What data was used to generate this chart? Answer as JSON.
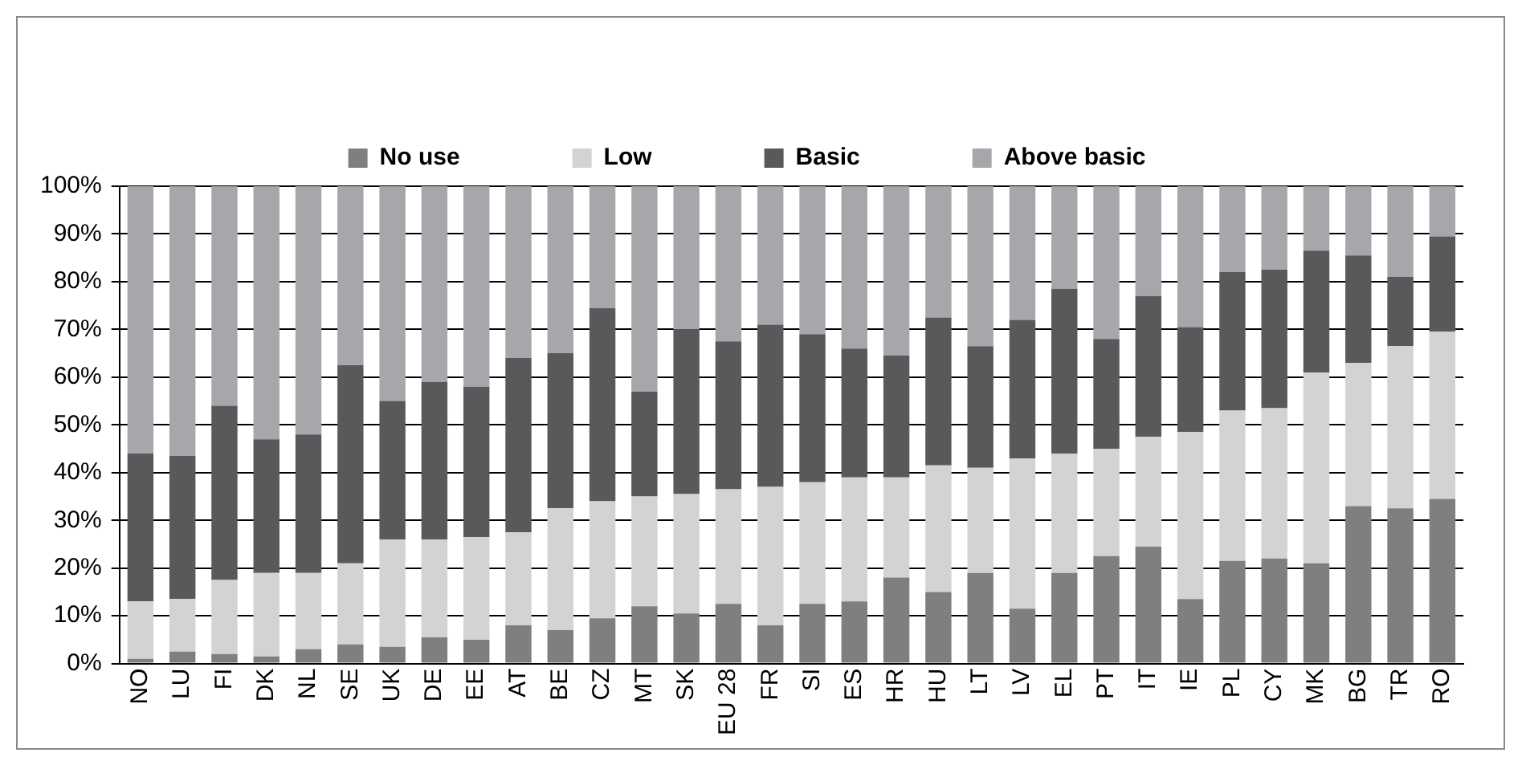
{
  "chart_data": {
    "type": "bar",
    "stacked": true,
    "categories": [
      "NO",
      "LU",
      "FI",
      "DK",
      "NL",
      "SE",
      "UK",
      "DE",
      "EE",
      "AT",
      "BE",
      "CZ",
      "MT",
      "SK",
      "EU 28",
      "FR",
      "SI",
      "ES",
      "HR",
      "HU",
      "LT",
      "LV",
      "EL",
      "PT",
      "IT",
      "IE",
      "PL",
      "CY",
      "MK",
      "BG",
      "TR",
      "RO"
    ],
    "series": [
      {
        "name": "No use",
        "color": "#7f7f82",
        "values": [
          1,
          2.5,
          2,
          1.5,
          3,
          4,
          3.5,
          5.5,
          5,
          8,
          7,
          9.5,
          12,
          10.5,
          12.5,
          8,
          12.5,
          13,
          18,
          15,
          19,
          11.5,
          19,
          22.5,
          24.5,
          13.5,
          21.5,
          22,
          21,
          33,
          32.5,
          34.5
        ]
      },
      {
        "name": "Low",
        "color": "#d3d3d4",
        "values": [
          12,
          11,
          15.5,
          17.5,
          16,
          17,
          22.5,
          20.5,
          21.5,
          19.5,
          25.5,
          24.5,
          23,
          25,
          24,
          29,
          25.5,
          26,
          21,
          26.5,
          22,
          31.5,
          25,
          22.5,
          23,
          35,
          31.5,
          31.5,
          40,
          30,
          34,
          35
        ]
      },
      {
        "name": "Basic",
        "color": "#58595b",
        "values": [
          31,
          30,
          36.5,
          28,
          29,
          41.5,
          29,
          33,
          31.5,
          36.5,
          32.5,
          40.5,
          22,
          34.5,
          31,
          34,
          31,
          27,
          25.5,
          31,
          25.5,
          29,
          34.5,
          23,
          29.5,
          22,
          29,
          29,
          25.5,
          22.5,
          14.5,
          20
        ]
      },
      {
        "name": "Above basic",
        "color": "#a6a7aa",
        "values": [
          56,
          56.5,
          46,
          53,
          52,
          37.5,
          45,
          41,
          42,
          36,
          35,
          25.5,
          43,
          30,
          32.5,
          29,
          31,
          34,
          35.5,
          27.5,
          33.5,
          28,
          21.5,
          32,
          23,
          29.5,
          18,
          17.5,
          13.5,
          14.5,
          19,
          10.5
        ]
      }
    ],
    "ylim": [
      0,
      100
    ],
    "yticks": [
      {
        "value": 0,
        "label": "0%"
      },
      {
        "value": 10,
        "label": "10%"
      },
      {
        "value": 20,
        "label": "20%"
      },
      {
        "value": 30,
        "label": "30%"
      },
      {
        "value": 40,
        "label": "40%"
      },
      {
        "value": 50,
        "label": "50%"
      },
      {
        "value": 60,
        "label": "60%"
      },
      {
        "value": 70,
        "label": "70%"
      },
      {
        "value": 80,
        "label": "80%"
      },
      {
        "value": 90,
        "label": "90%"
      },
      {
        "value": 100,
        "label": "100%"
      }
    ],
    "grid": "y",
    "legend": "top"
  }
}
